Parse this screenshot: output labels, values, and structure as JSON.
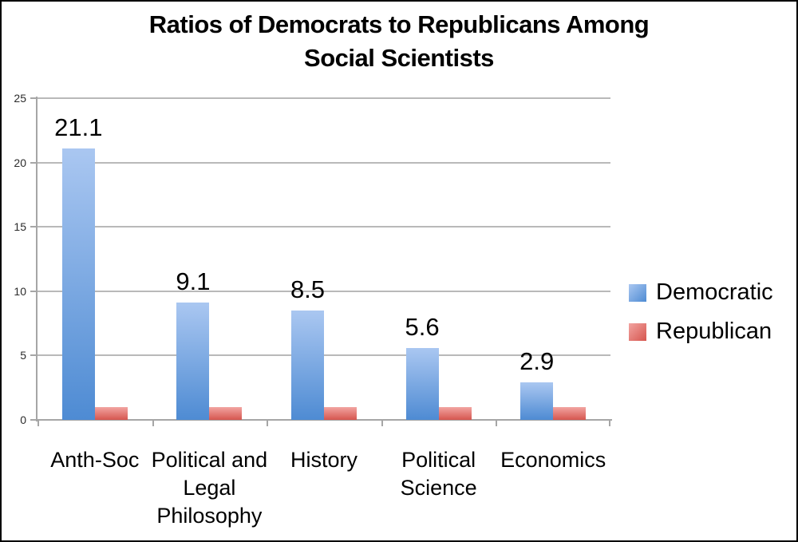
{
  "title": {
    "lines": [
      "Ratios of Democrats to Republicans Among",
      "Social Scientists"
    ]
  },
  "legend": {
    "items": [
      {
        "label": "Democratic",
        "color_top": "#aac7f1",
        "color_bottom": "#4e8bd3"
      },
      {
        "label": "Republican",
        "color_top": "#f2a4a1",
        "color_bottom": "#d6564f"
      }
    ]
  },
  "chart_data": {
    "type": "bar",
    "title": "Ratios of Democrats to Republicans Among Social Scientists",
    "categories": [
      "Anth-Soc",
      "Political and Legal Philosophy",
      "History",
      "Political Science",
      "Economics"
    ],
    "series": [
      {
        "name": "Democratic",
        "values": [
          21.1,
          9.1,
          8.5,
          5.6,
          2.9
        ],
        "value_labels": [
          "21.1",
          "9.1",
          "8.5",
          "5.6",
          "2.9"
        ],
        "color_top": "#aac7f1",
        "color_bottom": "#4e8bd3"
      },
      {
        "name": "Republican",
        "values": [
          1,
          1,
          1,
          1,
          1
        ],
        "value_labels": [
          "",
          "",
          "",
          "",
          ""
        ],
        "color_top": "#f2a4a1",
        "color_bottom": "#d6564f"
      }
    ],
    "xlabel": "",
    "ylabel": "",
    "ylim": [
      0,
      25
    ],
    "yticks": [
      0,
      5,
      10,
      15,
      20,
      25
    ],
    "grid": true,
    "legend_position": "right",
    "axis_color": "#a6a6a6",
    "gridline_color": "#b9b9b9"
  }
}
